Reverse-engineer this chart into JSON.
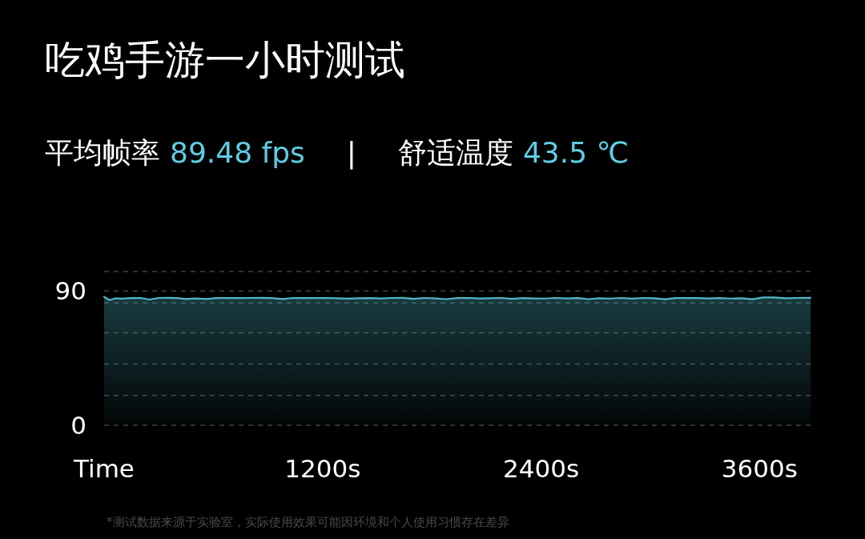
{
  "chart_data": {
    "type": "area",
    "title": "吃鸡手游一小时测试",
    "annotations": [
      "平均帧率",
      "89.48 fps",
      "|",
      "舒适温度",
      "43.5 ℃",
      "*测试数据来源于实验室，实际使用效果可能因环境和个人使用习惯存在差异"
    ],
    "xlim": [
      0,
      3880
    ],
    "xticks": [
      {
        "value": 0,
        "label": "Time"
      },
      {
        "value": 1200,
        "label": "1200s"
      },
      {
        "value": 2400,
        "label": "2400s"
      },
      {
        "value": 3600,
        "label": "3600s"
      }
    ],
    "ylim": [
      0,
      103
    ],
    "yticks": [
      0,
      {
        "value": 20,
        "label": null
      },
      {
        "value": 41,
        "label": null
      },
      {
        "value": 62,
        "label": null
      },
      {
        "value": 82,
        "label": null
      },
      90,
      {
        "value": 103,
        "label": null
      }
    ],
    "grid": "y",
    "line_style": "solid",
    "marker": "none",
    "x": [
      0,
      30,
      60,
      100,
      150,
      200,
      250,
      300,
      350,
      400,
      450,
      500,
      560,
      620,
      680,
      740,
      800,
      860,
      920,
      980,
      1040,
      1100,
      1160,
      1220,
      1280,
      1340,
      1400,
      1460,
      1520,
      1580,
      1640,
      1700,
      1760,
      1820,
      1880,
      1940,
      2000,
      2060,
      2120,
      2180,
      2240,
      2300,
      2360,
      2420,
      2480,
      2540,
      2600,
      2660,
      2720,
      2780,
      2840,
      2900,
      2960,
      3020,
      3080,
      3140,
      3200,
      3260,
      3320,
      3380,
      3440,
      3500,
      3560,
      3620,
      3680,
      3740,
      3800,
      3880
    ],
    "series": [
      {
        "color": "#4fb8c8",
        "values": [
          86.0,
          83.8,
          85.0,
          84.8,
          85.2,
          85.3,
          84.2,
          85.3,
          85.4,
          85.2,
          84.6,
          85.0,
          84.6,
          85.2,
          85.3,
          85.2,
          85.3,
          85.4,
          85.2,
          84.6,
          85.3,
          85.2,
          85.2,
          85.3,
          85.1,
          84.8,
          85.1,
          85.2,
          85.0,
          85.3,
          85.4,
          84.7,
          85.3,
          85.0,
          84.5,
          85.2,
          85.3,
          85.0,
          85.1,
          85.3,
          84.7,
          85.2,
          85.0,
          84.9,
          85.3,
          85.0,
          85.2,
          84.5,
          85.1,
          84.9,
          85.3,
          84.8,
          85.3,
          85.1,
          84.4,
          85.2,
          85.3,
          85.2,
          85.0,
          85.2,
          84.9,
          85.1,
          84.4,
          85.6,
          85.6,
          85.1,
          85.3,
          85.4
        ]
      }
    ]
  }
}
